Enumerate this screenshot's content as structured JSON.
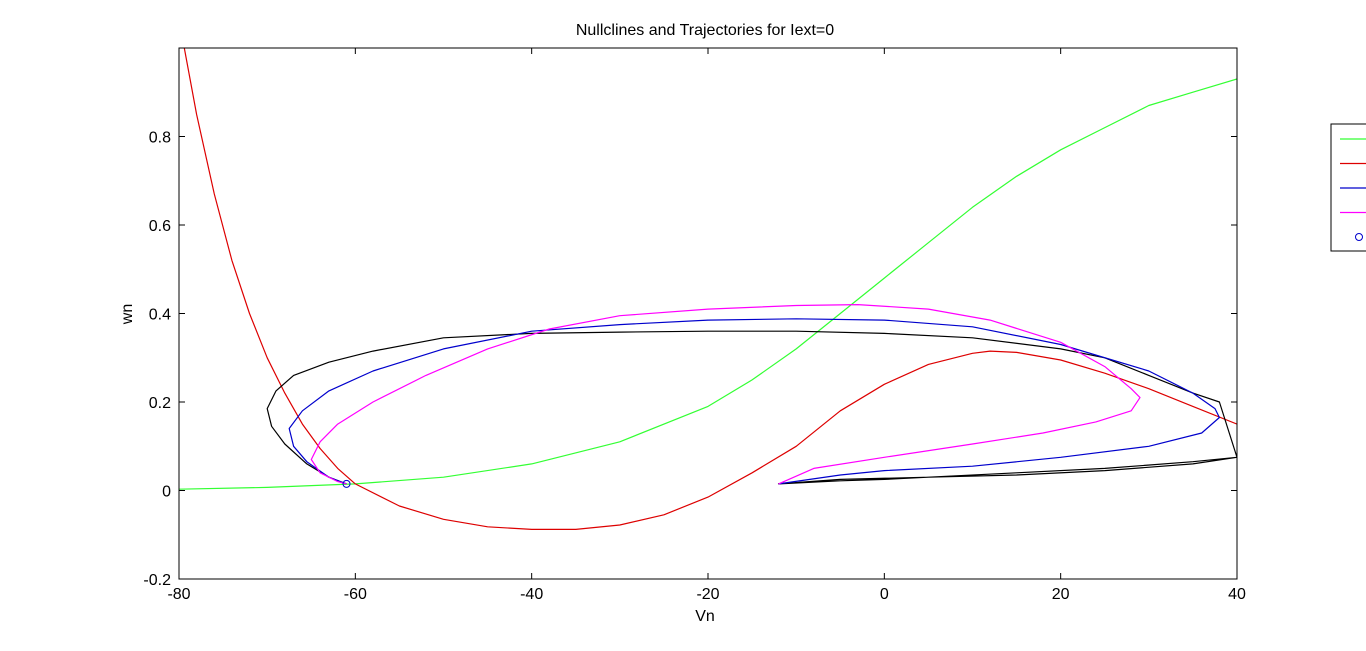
{
  "chart_data": {
    "type": "line",
    "title": "Nullclines and Trajectories for Iext=0",
    "xlabel": "Vn",
    "ylabel": "wn",
    "xlim": [
      -80,
      40
    ],
    "ylim": [
      -0.2,
      1.0
    ],
    "xticks": [
      -80,
      -60,
      -40,
      -20,
      0,
      20,
      40
    ],
    "yticks": [
      -0.2,
      0,
      0.2,
      0.4,
      0.6,
      0.8
    ],
    "xtick_labels": [
      "-80",
      "-60",
      "-40",
      "-20",
      "0",
      "20",
      "40"
    ],
    "ytick_labels": [
      "-0.2",
      "0",
      "0.2",
      "0.4",
      "0.6",
      "0.8"
    ],
    "grid": false,
    "legend_position": "right, clipped at figure edge",
    "series": [
      {
        "color": "#33ff33",
        "x": [
          -80,
          -70,
          -60,
          -50,
          -40,
          -30,
          -20,
          -15,
          -10,
          -5,
          0,
          5,
          10,
          15,
          20,
          25,
          30,
          35,
          40
        ],
        "y": [
          0.003,
          0.007,
          0.015,
          0.03,
          0.06,
          0.11,
          0.19,
          0.25,
          0.32,
          0.4,
          0.48,
          0.56,
          0.64,
          0.71,
          0.77,
          0.82,
          0.87,
          0.9,
          0.93
        ]
      },
      {
        "color": "#dd0000",
        "x": [
          -79.4,
          -78,
          -76,
          -74,
          -72,
          -70,
          -68,
          -66,
          -64,
          -62,
          -60,
          -55,
          -50,
          -45,
          -40,
          -35,
          -30,
          -25,
          -20,
          -15,
          -10,
          -5,
          0,
          5,
          10,
          12,
          15,
          20,
          25,
          30,
          35,
          40
        ],
        "y": [
          1.0,
          0.85,
          0.67,
          0.52,
          0.4,
          0.3,
          0.22,
          0.15,
          0.095,
          0.05,
          0.015,
          -0.035,
          -0.065,
          -0.082,
          -0.088,
          -0.088,
          -0.078,
          -0.055,
          -0.015,
          0.04,
          0.1,
          0.18,
          0.24,
          0.285,
          0.31,
          0.315,
          0.312,
          0.295,
          0.265,
          0.23,
          0.19,
          0.15
        ]
      },
      {
        "color": "#000000",
        "x": [
          40,
          35,
          25,
          15,
          5,
          0,
          -5,
          -12,
          -5,
          5,
          15,
          25,
          35,
          40,
          38,
          35,
          30,
          25,
          20,
          10,
          0,
          -10,
          -20,
          -30,
          -40,
          -50,
          -58,
          -63,
          -67,
          -69,
          -70,
          -69.5,
          -68,
          -65.5,
          -63,
          -61
        ],
        "y": [
          0.075,
          0.06,
          0.045,
          0.035,
          0.03,
          0.025,
          0.022,
          0.015,
          0.025,
          0.03,
          0.04,
          0.05,
          0.065,
          0.075,
          0.2,
          0.22,
          0.26,
          0.3,
          0.32,
          0.345,
          0.355,
          0.36,
          0.36,
          0.358,
          0.355,
          0.345,
          0.315,
          0.29,
          0.26,
          0.225,
          0.185,
          0.145,
          0.105,
          0.06,
          0.03,
          0.015
        ]
      },
      {
        "color": "#0000cc",
        "x": [
          -61,
          -63,
          -65.5,
          -67,
          -67.5,
          -66,
          -63,
          -58,
          -50,
          -40,
          -30,
          -20,
          -10,
          0,
          10,
          20,
          30,
          35,
          37.5,
          38,
          36,
          30,
          20,
          10,
          0,
          -5,
          -12
        ],
        "y": [
          0.015,
          0.03,
          0.065,
          0.1,
          0.14,
          0.18,
          0.225,
          0.27,
          0.32,
          0.36,
          0.375,
          0.385,
          0.388,
          0.385,
          0.37,
          0.33,
          0.27,
          0.22,
          0.185,
          0.165,
          0.13,
          0.1,
          0.075,
          0.055,
          0.045,
          0.035,
          0.015
        ]
      },
      {
        "color": "#ff00ff",
        "x": [
          -61,
          -62,
          -64,
          -65,
          -64,
          -62,
          -58,
          -52,
          -45,
          -38,
          -30,
          -20,
          -10,
          -3,
          5,
          12,
          20,
          25,
          28,
          29,
          28,
          24,
          18,
          10,
          0,
          -8,
          -12
        ],
        "y": [
          0.015,
          0.02,
          0.04,
          0.07,
          0.11,
          0.15,
          0.2,
          0.26,
          0.32,
          0.365,
          0.395,
          0.41,
          0.418,
          0.42,
          0.41,
          0.385,
          0.335,
          0.28,
          0.23,
          0.21,
          0.18,
          0.155,
          0.13,
          0.105,
          0.075,
          0.05,
          0.015
        ]
      }
    ],
    "marker": {
      "color": "#0000cc",
      "shape": "circle",
      "x": -61,
      "y": 0.015
    },
    "legend_entries": [
      {
        "color": "#33ff33",
        "kind": "line"
      },
      {
        "color": "#dd0000",
        "kind": "line"
      },
      {
        "color": "#0000cc",
        "kind": "line"
      },
      {
        "color": "#ff00ff",
        "kind": "line"
      },
      {
        "color": "#0000cc",
        "kind": "marker"
      }
    ]
  }
}
